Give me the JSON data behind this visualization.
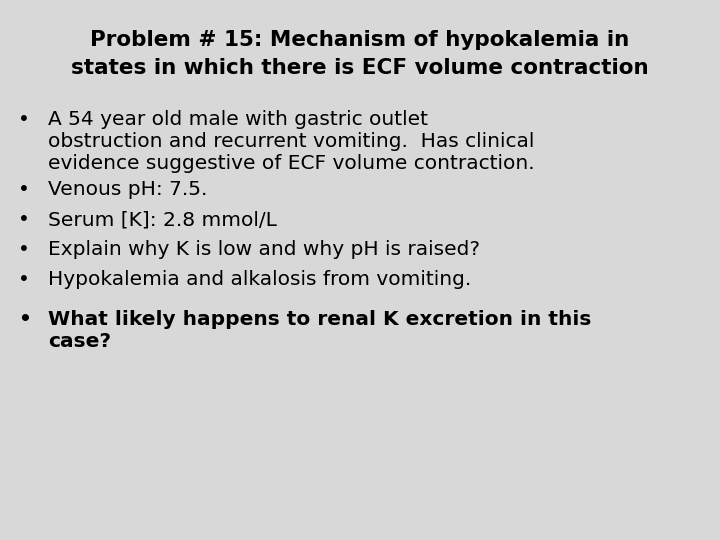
{
  "title_line1": "Problem # 15: Mechanism of hypokalemia in",
  "title_line2": "states in which there is ECF volume contraction",
  "background_color": "#d8d8d8",
  "title_color": "#000000",
  "text_color": "#000000",
  "bullet_points": [
    {
      "lines": [
        "A 54 year old male with gastric outlet",
        "obstruction and recurrent vomiting.  Has clinical",
        "evidence suggestive of ECF volume contraction."
      ],
      "bold": false
    },
    {
      "lines": [
        "Venous pH: 7.5."
      ],
      "bold": false
    },
    {
      "lines": [
        "Serum [K]: 2.8 mmol/L"
      ],
      "bold": false
    },
    {
      "lines": [
        "Explain why K is low and why pH is raised?"
      ],
      "bold": false
    },
    {
      "lines": [
        "Hypokalemia and alkalosis from vomiting."
      ],
      "bold": false
    },
    {
      "lines": [
        "What likely happens to renal K excretion in this",
        "case?"
      ],
      "bold": true
    }
  ],
  "title_fontsize": 15.5,
  "body_fontsize": 14.5,
  "bullet_char": "•",
  "fig_width": 7.2,
  "fig_height": 5.4,
  "dpi": 100
}
